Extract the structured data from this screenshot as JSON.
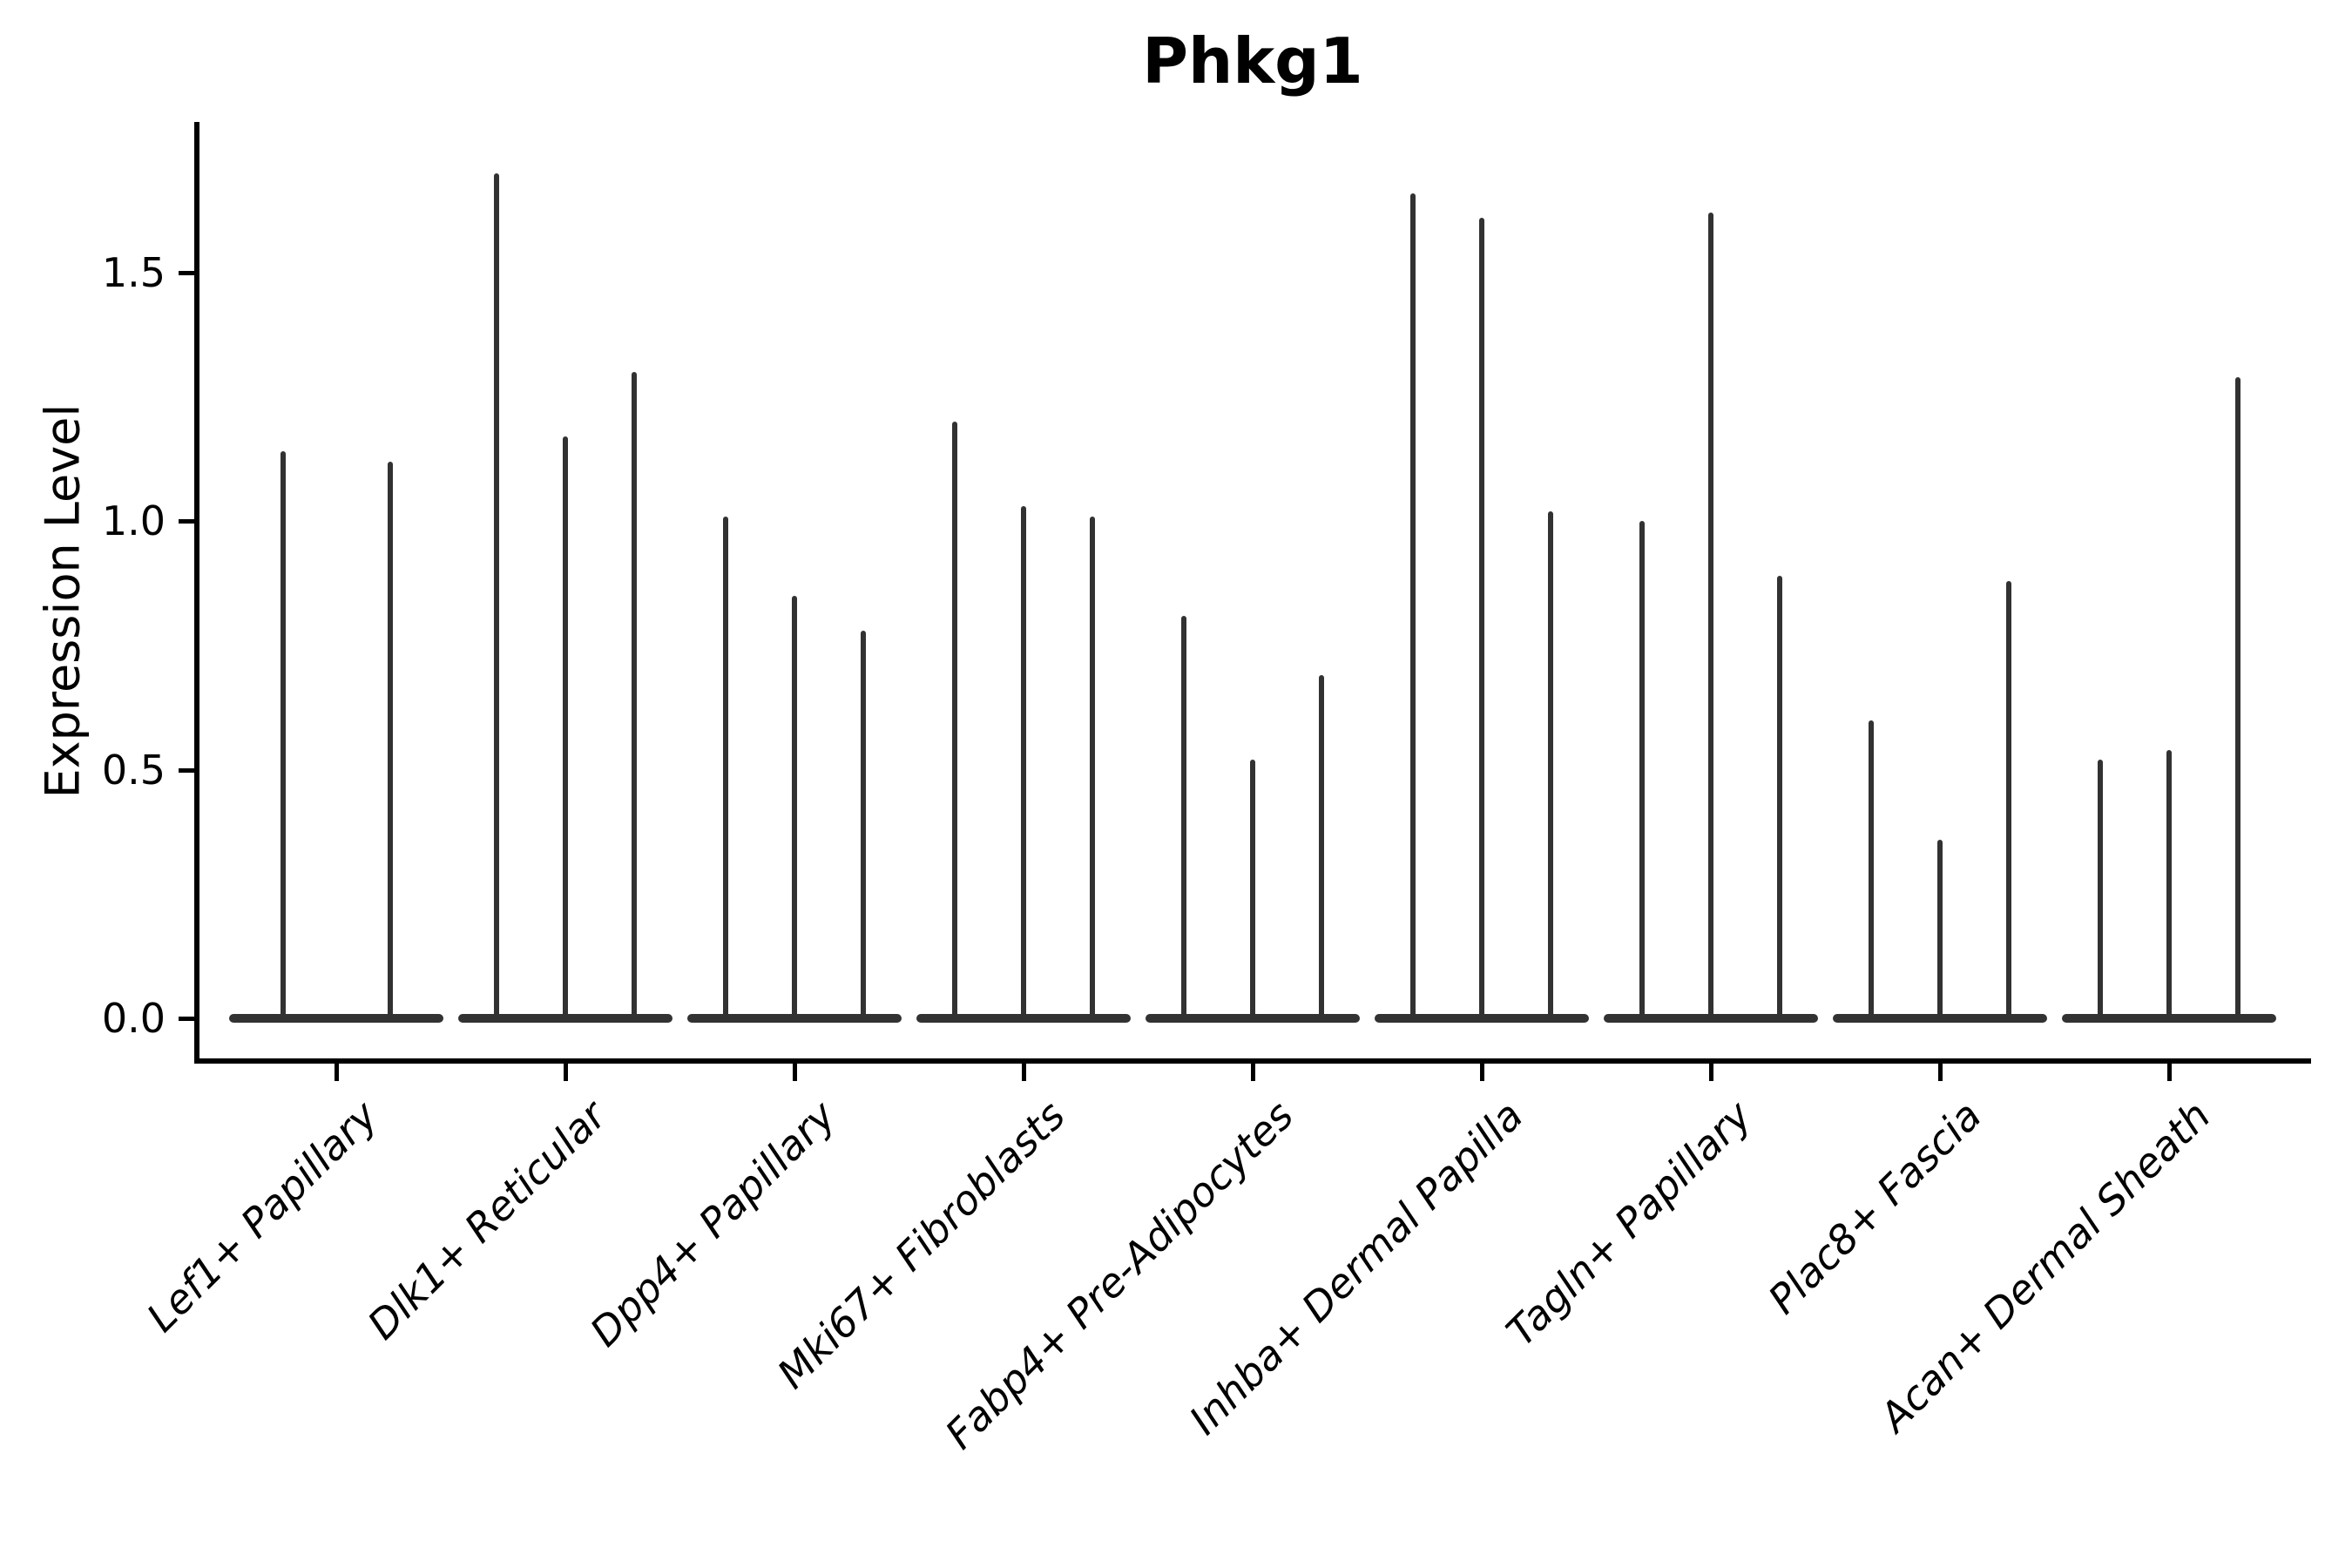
{
  "chart_data": {
    "type": "violin",
    "title": "Phkg1",
    "ylabel": "Expression Level",
    "xlabel": "",
    "yticks": [
      0.0,
      0.5,
      1.0,
      1.5
    ],
    "ytick_labels": [
      "0.0",
      "0.5",
      "1.0",
      "1.5"
    ],
    "ylim": [
      0.0,
      1.79
    ],
    "grid": false,
    "legend": "none",
    "shape_note": "Each violin is needle-like: almost all density lies in a flat bulge at expression 0 with a thin vertical spike reaching the maximum expression value",
    "categories": [
      "Lef1+ Papillary",
      "Dlk1+ Reticular",
      "Dpp4+ Papillary",
      "Mki67+ Fibroblasts",
      "Fabp4+ Pre-Adipocytes",
      "Inhba+ Dermal Papilla",
      "Tagln+ Papillary",
      "Plac8+ Fascia",
      "Acan+ Dermal Sheath"
    ],
    "violins": [
      {
        "category": "Lef1+ Papillary",
        "spike_max_values": [
          1.14,
          1.12
        ]
      },
      {
        "category": "Dlk1+ Reticular",
        "spike_max_values": [
          1.7,
          1.17,
          1.3
        ]
      },
      {
        "category": "Dpp4+ Papillary",
        "spike_max_values": [
          1.01,
          0.85,
          0.78
        ]
      },
      {
        "category": "Mki67+ Fibroblasts",
        "spike_max_values": [
          1.2,
          1.03,
          1.01
        ]
      },
      {
        "category": "Fabp4+ Pre-Adipocytes",
        "spike_max_values": [
          0.81,
          0.52,
          0.69
        ]
      },
      {
        "category": "Inhba+ Dermal Papilla",
        "spike_max_values": [
          1.66,
          1.61,
          1.02
        ]
      },
      {
        "category": "Tagln+ Papillary",
        "spike_max_values": [
          1.0,
          1.62,
          0.89
        ]
      },
      {
        "category": "Plac8+ Fascia",
        "spike_max_values": [
          0.6,
          0.36,
          0.88
        ]
      },
      {
        "category": "Acan+ Dermal Sheath",
        "spike_max_values": [
          0.52,
          0.54,
          1.29
        ]
      }
    ],
    "colors": {
      "violin": "#323232",
      "axis": "#000000",
      "text": "#000000",
      "background": "#ffffff"
    }
  }
}
